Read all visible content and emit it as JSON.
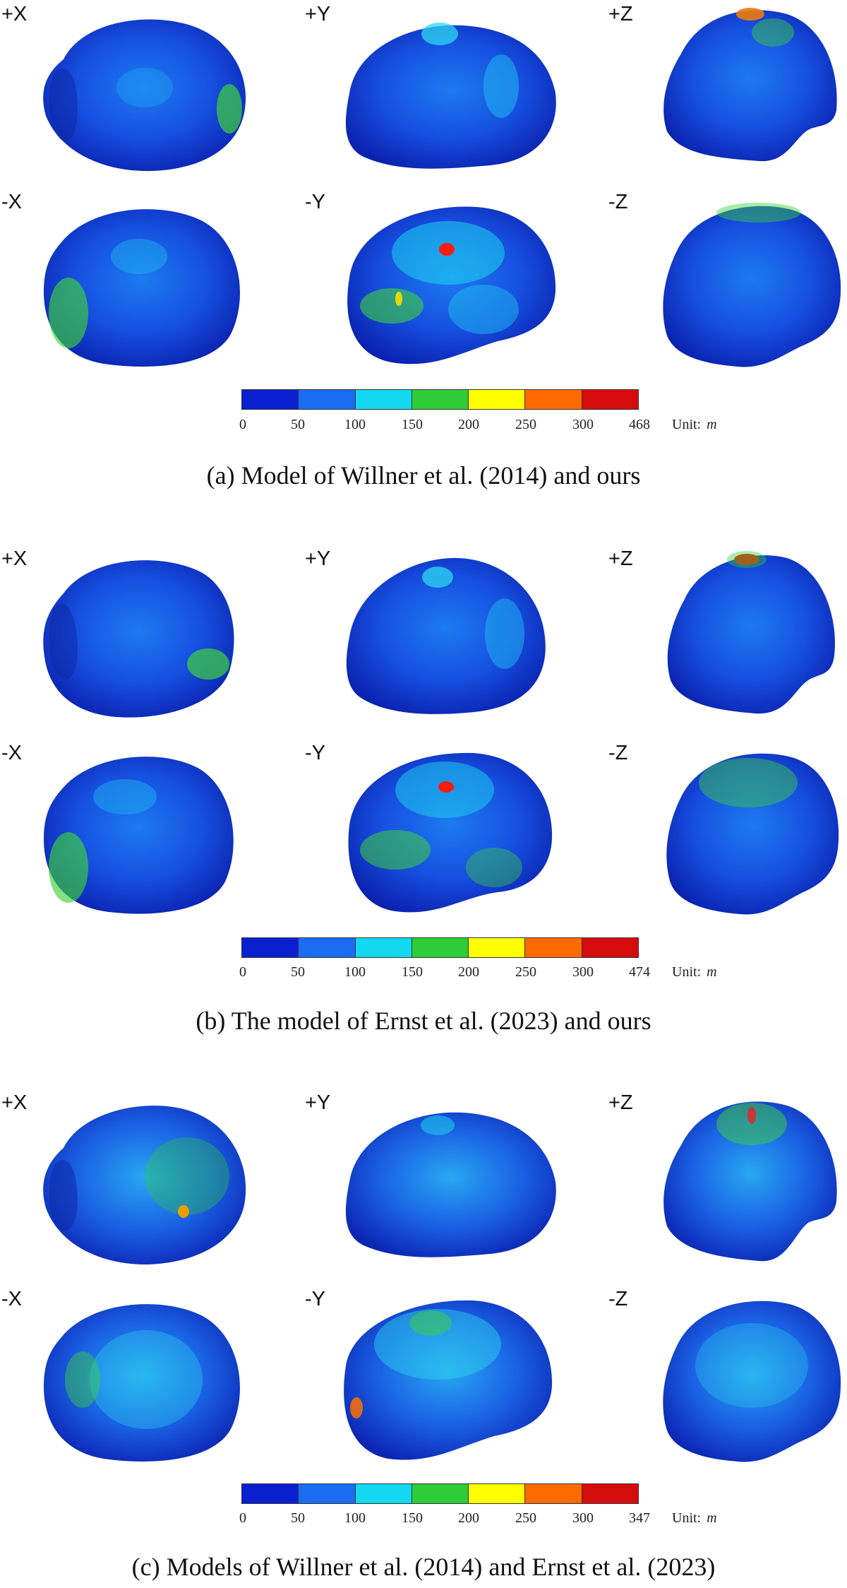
{
  "colorbar_colors": [
    "#0a1fd0",
    "#1a6cf2",
    "#12d8f0",
    "#2ecc36",
    "#ffff00",
    "#ff6a00",
    "#d60b0b"
  ],
  "panels": [
    {
      "views": [
        "+X",
        "+Y",
        "+Z",
        "-X",
        "-Y",
        "-Z"
      ],
      "ticks": [
        "0",
        "50",
        "100",
        "150",
        "200",
        "250",
        "300",
        "468"
      ],
      "unit_label": "Unit:",
      "unit_symbol": "m",
      "caption": "(a) Model of Willner et al. (2014) and ours"
    },
    {
      "views": [
        "+X",
        "+Y",
        "+Z",
        "-X",
        "-Y",
        "-Z"
      ],
      "ticks": [
        "0",
        "50",
        "100",
        "150",
        "200",
        "250",
        "300",
        "474"
      ],
      "unit_label": "Unit:",
      "unit_symbol": "m",
      "caption": "(b) The model of Ernst et al. (2023) and ours"
    },
    {
      "views": [
        "+X",
        "+Y",
        "+Z",
        "-X",
        "-Y",
        "-Z"
      ],
      "ticks": [
        "0",
        "50",
        "100",
        "150",
        "200",
        "250",
        "300",
        "347"
      ],
      "unit_label": "Unit:",
      "unit_symbol": "m",
      "caption": "(c) Models of Willner et al. (2014) and Ernst et al. (2023)"
    }
  ]
}
